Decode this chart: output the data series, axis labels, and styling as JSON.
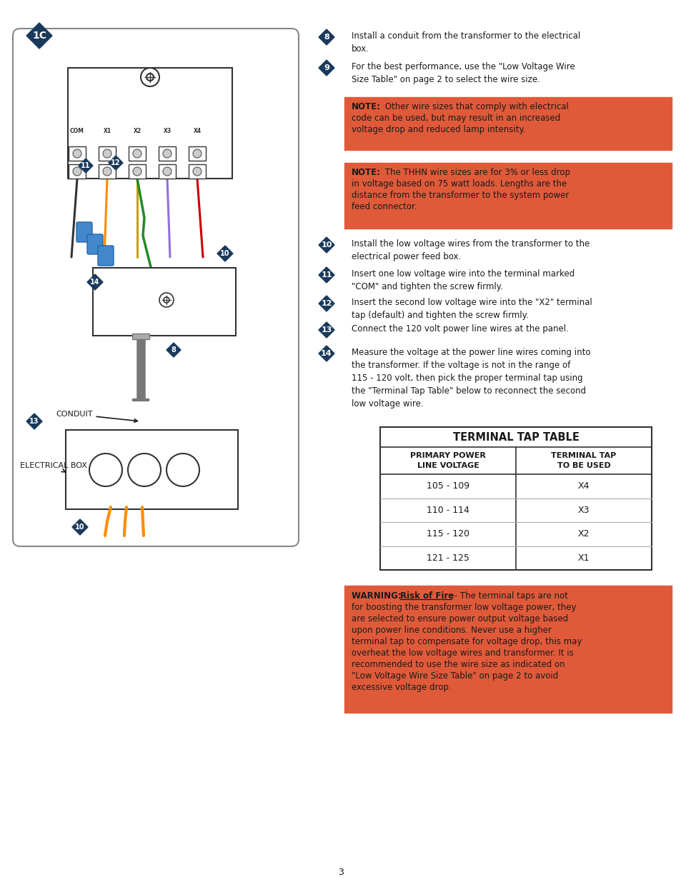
{
  "bg_color": "#ffffff",
  "diamond_color": "#1a3a5c",
  "note_bg_color": "#e05a3a",
  "text_color": "#1a1a1a",
  "page_number": "3",
  "table_title": "TERMINAL TAP TABLE",
  "table_col1_header": "PRIMARY POWER\nLINE VOLTAGE",
  "table_col2_header": "TERMINAL TAP\nTO BE USED",
  "table_rows": [
    [
      "105 - 109",
      "X4"
    ],
    [
      "110 - 114",
      "X3"
    ],
    [
      "115 - 120",
      "X2"
    ],
    [
      "121 - 125",
      "X1"
    ]
  ]
}
